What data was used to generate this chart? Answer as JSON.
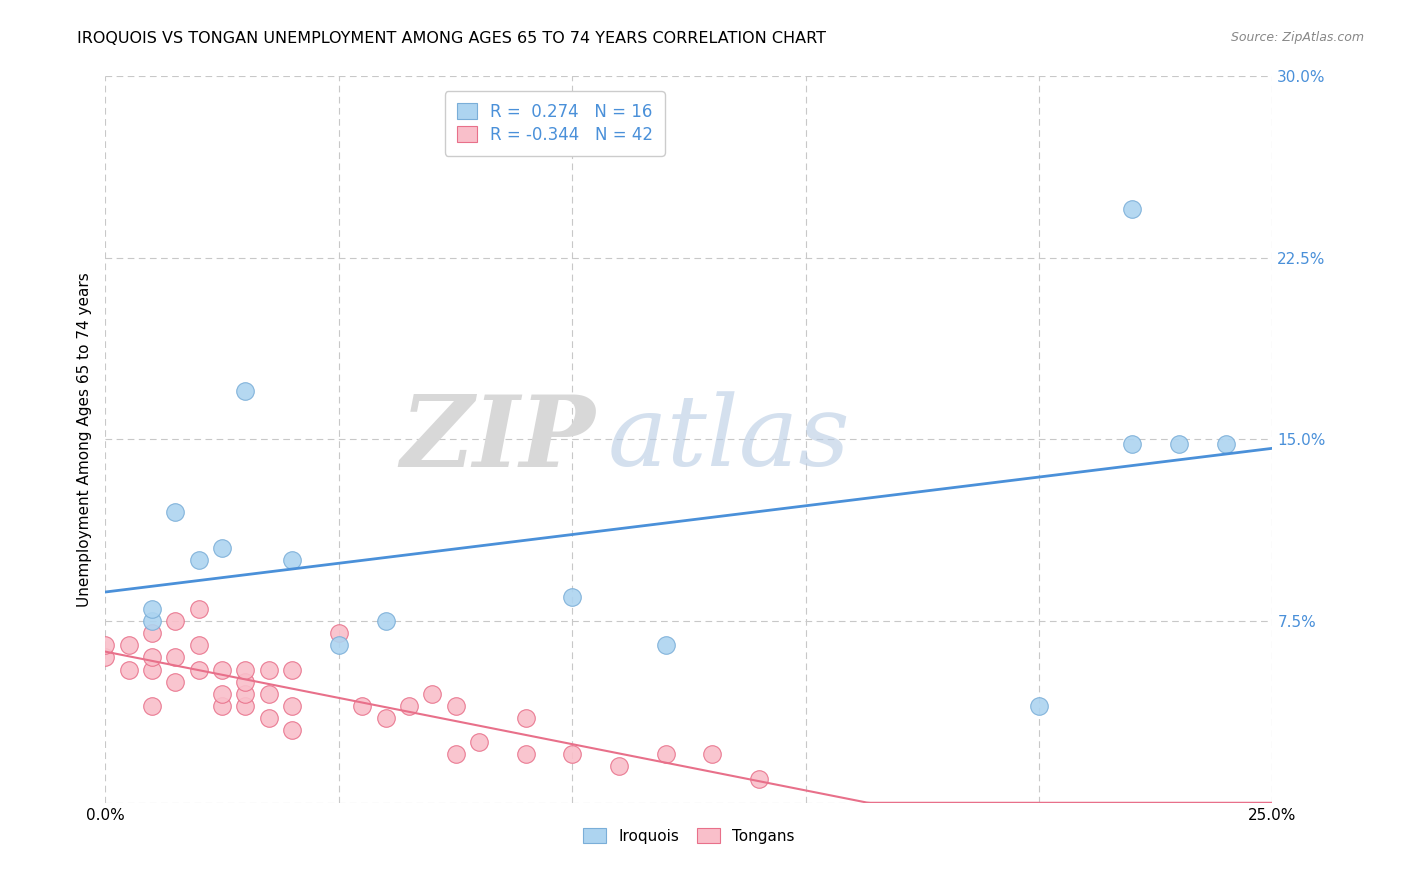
{
  "title": "IROQUOIS VS TONGAN UNEMPLOYMENT AMONG AGES 65 TO 74 YEARS CORRELATION CHART",
  "source": "Source: ZipAtlas.com",
  "ylabel": "Unemployment Among Ages 65 to 74 years",
  "xlim": [
    0.0,
    0.25
  ],
  "ylim": [
    0.0,
    0.3
  ],
  "xticks": [
    0.0,
    0.05,
    0.1,
    0.15,
    0.2,
    0.25
  ],
  "yticks": [
    0.0,
    0.075,
    0.15,
    0.225,
    0.3
  ],
  "xtick_labels": [
    "0.0%",
    "",
    "",
    "",
    "",
    "25.0%"
  ],
  "ytick_labels": [
    "",
    "7.5%",
    "15.0%",
    "22.5%",
    "30.0%"
  ],
  "iroquois_color": "#ADD4F0",
  "tongans_color": "#F9BFCA",
  "iroquois_edge_color": "#7AAED8",
  "tongans_edge_color": "#E8708A",
  "iroquois_line_color": "#4A90D9",
  "tongans_line_color": "#E8708A",
  "iroquois_R": 0.274,
  "iroquois_N": 16,
  "tongans_R": -0.344,
  "tongans_N": 42,
  "iroquois_x": [
    0.01,
    0.01,
    0.015,
    0.02,
    0.025,
    0.03,
    0.04,
    0.05,
    0.06,
    0.1,
    0.12,
    0.2,
    0.22,
    0.22,
    0.23,
    0.24
  ],
  "iroquois_y": [
    0.075,
    0.08,
    0.12,
    0.1,
    0.105,
    0.17,
    0.1,
    0.065,
    0.075,
    0.085,
    0.065,
    0.04,
    0.245,
    0.148,
    0.148,
    0.148
  ],
  "tongans_x": [
    0.0,
    0.0,
    0.005,
    0.005,
    0.01,
    0.01,
    0.01,
    0.01,
    0.015,
    0.015,
    0.015,
    0.02,
    0.02,
    0.02,
    0.025,
    0.025,
    0.025,
    0.03,
    0.03,
    0.03,
    0.03,
    0.035,
    0.035,
    0.035,
    0.04,
    0.04,
    0.04,
    0.05,
    0.055,
    0.06,
    0.065,
    0.07,
    0.075,
    0.075,
    0.08,
    0.09,
    0.09,
    0.1,
    0.11,
    0.12,
    0.13,
    0.14
  ],
  "tongans_y": [
    0.06,
    0.065,
    0.055,
    0.065,
    0.04,
    0.055,
    0.06,
    0.07,
    0.05,
    0.06,
    0.075,
    0.055,
    0.065,
    0.08,
    0.04,
    0.045,
    0.055,
    0.04,
    0.045,
    0.05,
    0.055,
    0.035,
    0.045,
    0.055,
    0.03,
    0.04,
    0.055,
    0.07,
    0.04,
    0.035,
    0.04,
    0.045,
    0.02,
    0.04,
    0.025,
    0.02,
    0.035,
    0.02,
    0.015,
    0.02,
    0.02,
    0.01
  ],
  "watermark_zip": "ZIP",
  "watermark_atlas": "atlas",
  "background_color": "#FFFFFF",
  "grid_color": "#C8C8C8",
  "legend_label_color": "#4A90D9"
}
